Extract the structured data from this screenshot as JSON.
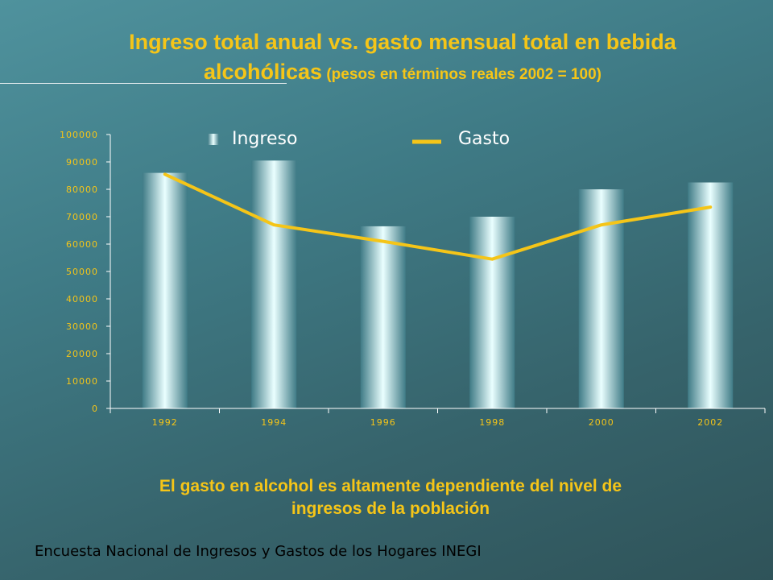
{
  "header": {
    "title_line1": "Ingreso  total anual vs. gasto mensual total en bebida",
    "title_line2_main": "alcohólicas",
    "title_line2_sub": " (pesos en términos reales  2002 = 100)"
  },
  "legend": {
    "series1": "Ingreso",
    "series2": "Gasto"
  },
  "colors": {
    "title": "#f5c518",
    "line": "#f5c518",
    "bar_light": "#e8ffff",
    "bar_dark": "#3f7b86"
  },
  "chart_data": {
    "type": "bar",
    "categories": [
      "1992",
      "1994",
      "1996",
      "1998",
      "2000",
      "2002"
    ],
    "series": [
      {
        "name": "Ingreso",
        "type": "bar",
        "values": [
          86000,
          90500,
          66500,
          70000,
          80000,
          82500
        ]
      },
      {
        "name": "Gasto",
        "type": "line",
        "values": [
          85500,
          67000,
          61000,
          54500,
          67000,
          73500
        ]
      }
    ],
    "yticks": [
      "0",
      "10000",
      "20000",
      "30000",
      "40000",
      "50000",
      "60000",
      "70000",
      "80000",
      "90000",
      "100000"
    ],
    "ylim": [
      0,
      100000
    ],
    "legend_position": "top"
  },
  "conclusion": {
    "line1": "El gasto en alcohol  es altamente dependiente del nivel de",
    "line2": "ingresos de la población"
  },
  "source": "Encuesta Nacional de Ingresos y Gastos de los Hogares INEGI"
}
